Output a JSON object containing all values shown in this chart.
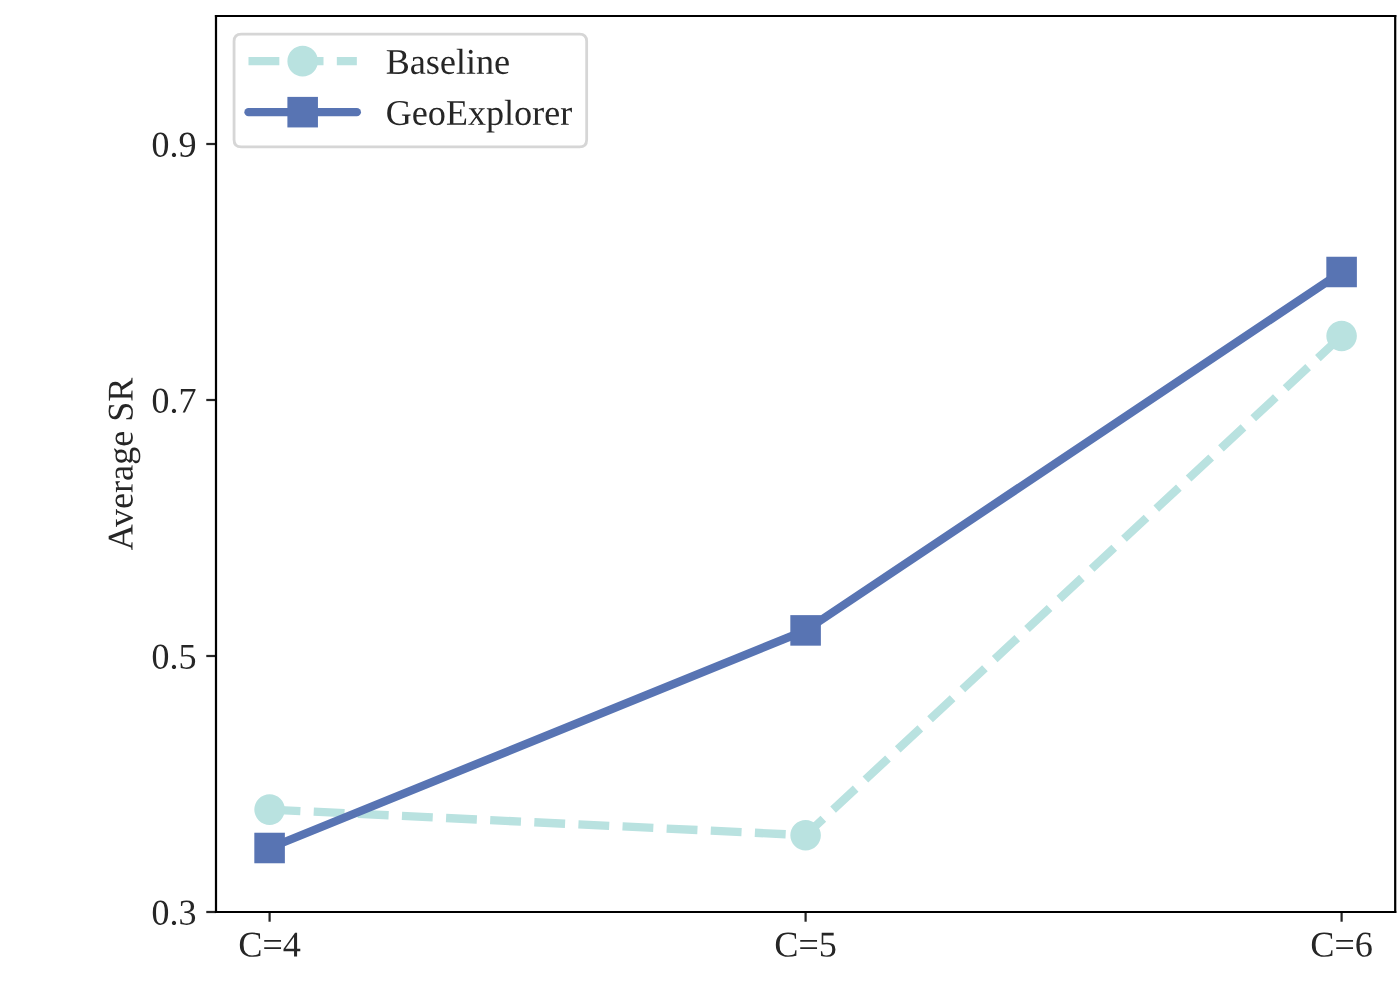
{
  "chart_data": {
    "type": "line",
    "ylabel": "Average SR",
    "categories": [
      "C=4",
      "C=5",
      "C=6"
    ],
    "series": [
      {
        "name": "Baseline",
        "color": "#b9e2e0",
        "values": [
          0.38,
          0.36,
          0.75
        ],
        "marker": "circle",
        "line_style": "dashed"
      },
      {
        "name": "GeoExplorer",
        "color": "#5874b3",
        "values": [
          0.35,
          0.52,
          0.8
        ],
        "marker": "square",
        "line_style": "solid"
      }
    ],
    "ylim": [
      0.3,
      1.0
    ],
    "yticks": [
      0.3,
      0.5,
      0.7,
      0.9
    ],
    "grid": false,
    "legend": "top left"
  }
}
